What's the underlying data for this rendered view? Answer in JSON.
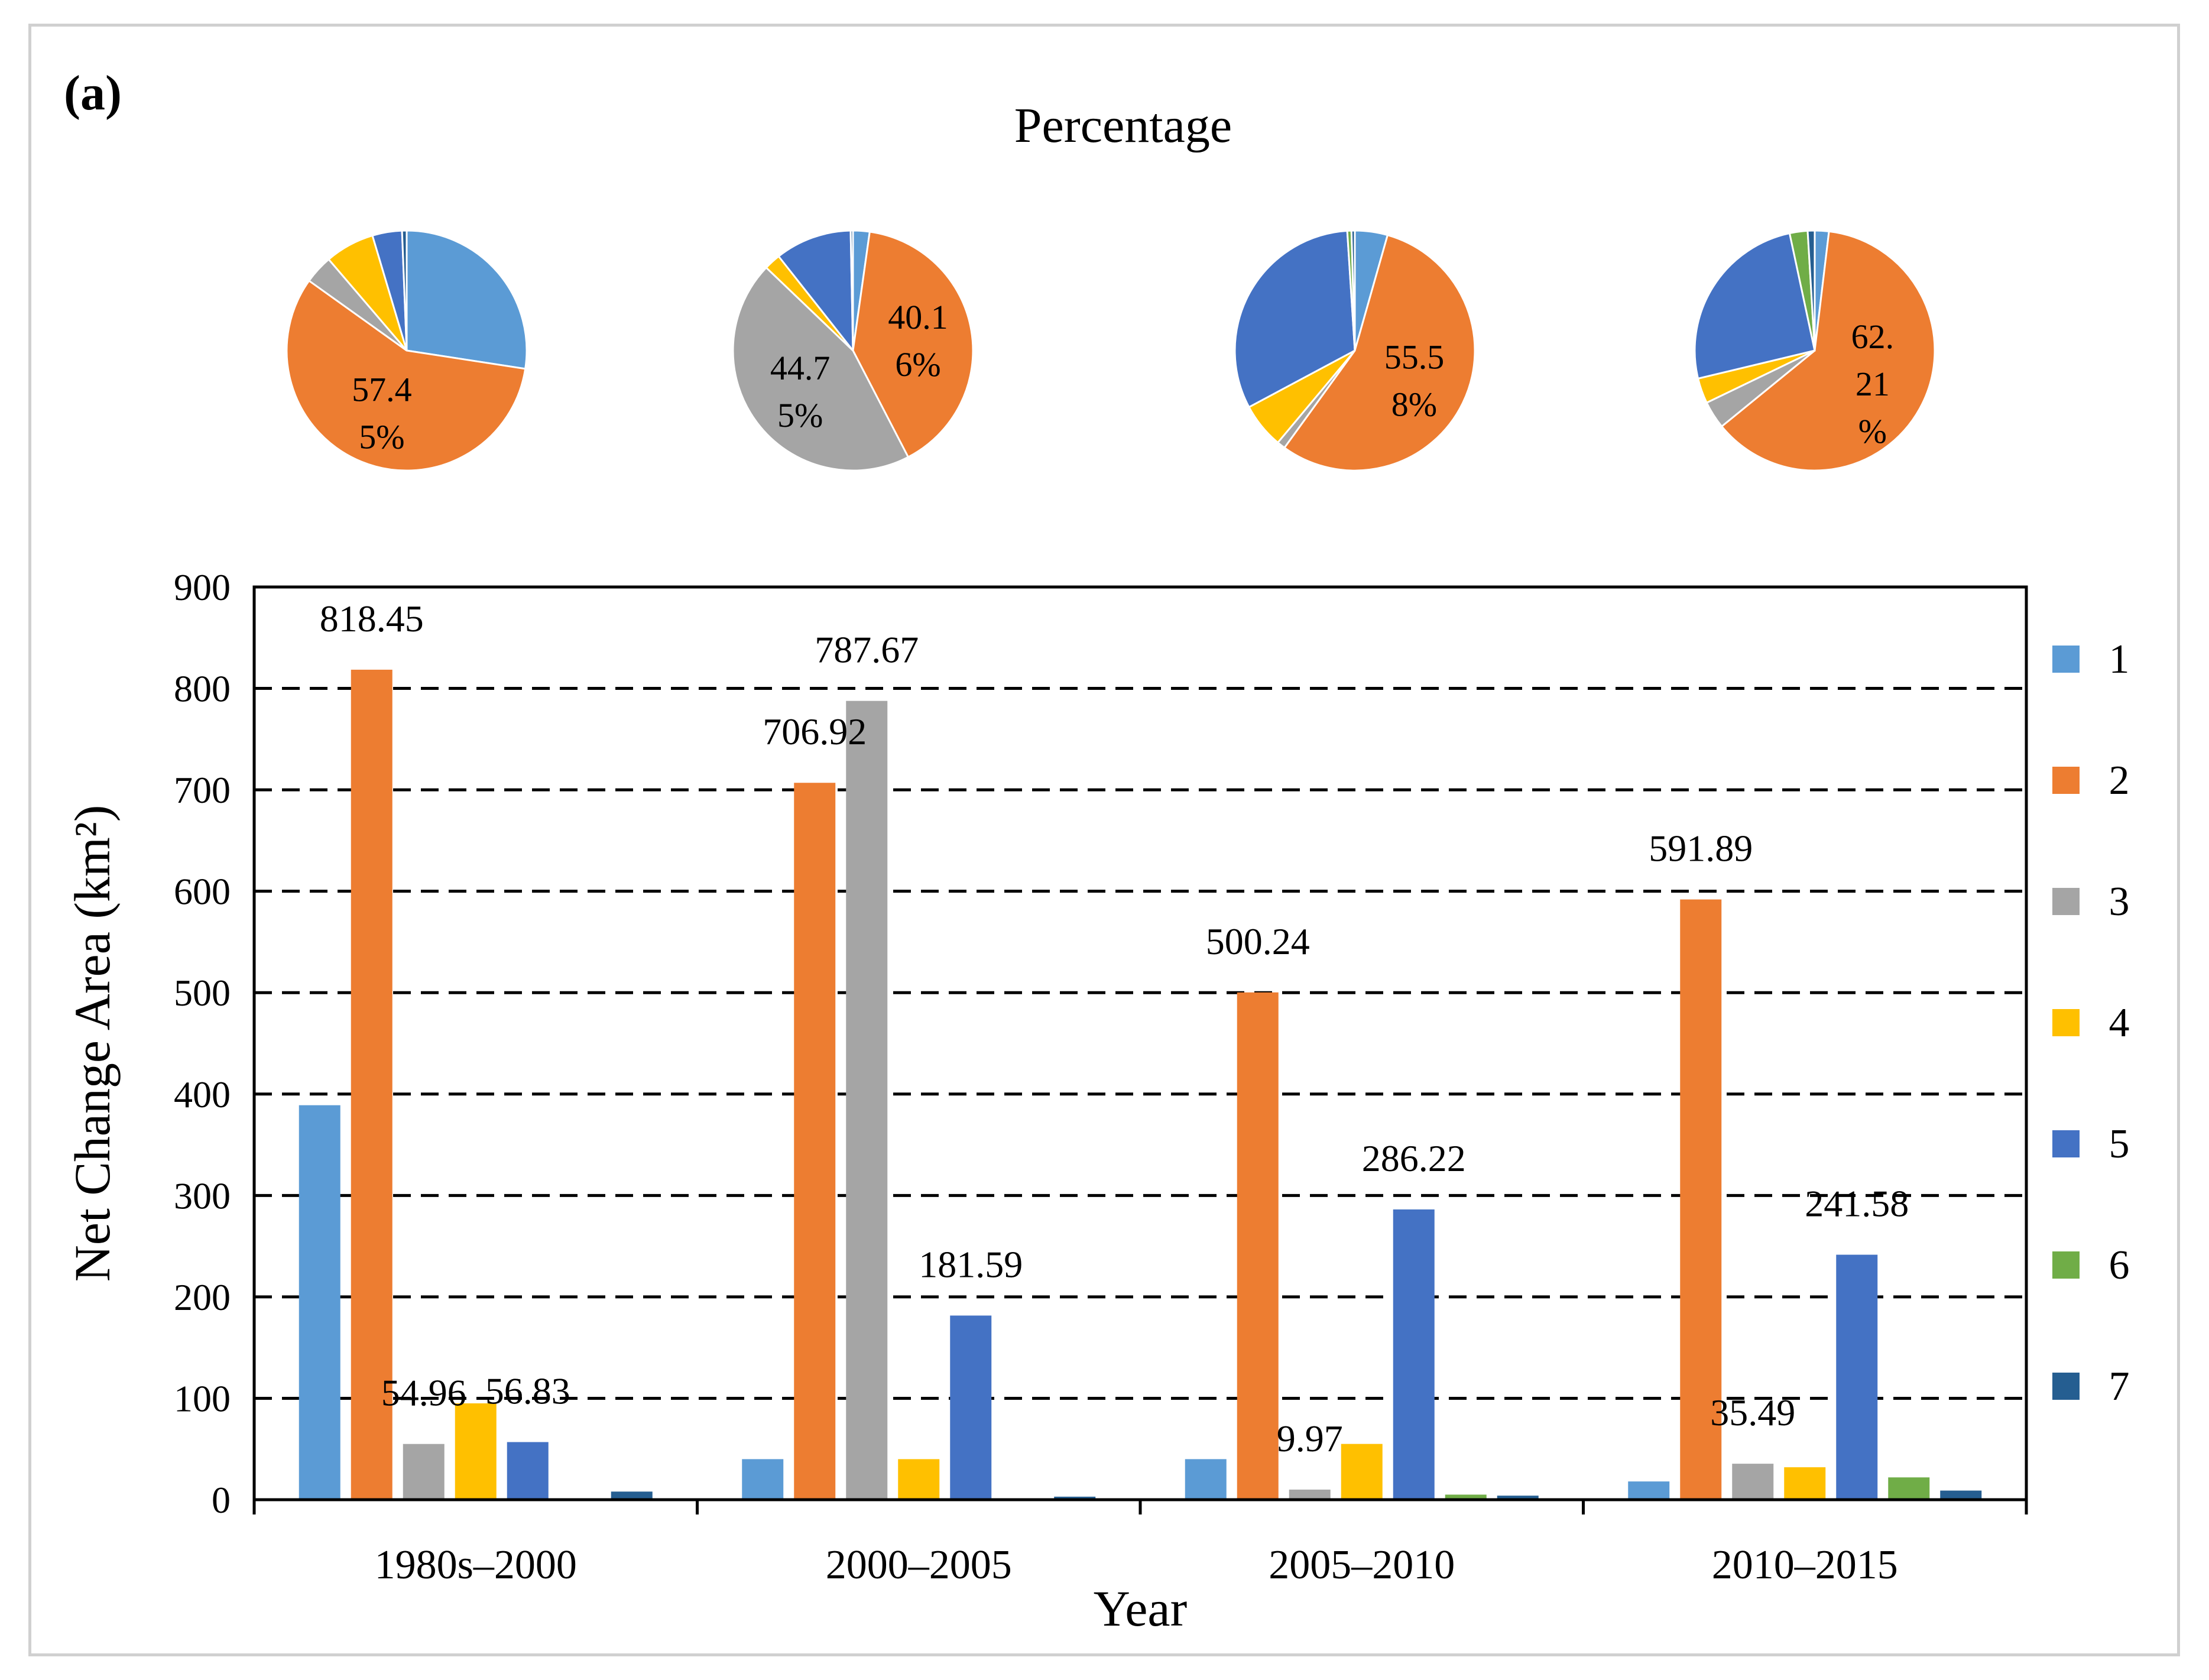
{
  "panel_label": "(a)",
  "chart_data": [
    {
      "type": "pie",
      "title": "Percentage",
      "categories": [
        "1980s–2000",
        "2000–2005",
        "2005–2010",
        "2010–2015"
      ],
      "series_names": [
        "1",
        "2",
        "3",
        "4",
        "5",
        "6",
        "7"
      ],
      "colors": [
        "#5b9bd5",
        "#ed7d31",
        "#a5a5a5",
        "#ffc000",
        "#4472c4",
        "#70ad47",
        "#255e91"
      ],
      "pies": [
        {
          "category": "1980s–2000",
          "values": [
            27.43,
            57.45,
            3.86,
            6.65,
            3.99,
            0.0,
            0.62
          ],
          "label_lines": [
            "57.4",
            "5%"
          ]
        },
        {
          "category": "2000–2005",
          "values": [
            2.23,
            40.16,
            44.75,
            2.23,
            10.32,
            0.0,
            0.31
          ],
          "label_lines_orange": [
            "40.1",
            "6%"
          ],
          "label_lines_gray": [
            "44.7",
            "5%"
          ]
        },
        {
          "category": "2005–2010",
          "values": [
            4.4,
            55.58,
            1.11,
            6.1,
            31.8,
            0.56,
            0.45
          ],
          "label_lines": [
            "55.5",
            "8%"
          ]
        },
        {
          "category": "2010–2015",
          "values": [
            1.9,
            62.21,
            3.73,
            3.41,
            25.39,
            2.42,
            0.94
          ],
          "label_lines": [
            "62.",
            "21",
            "%"
          ]
        }
      ]
    },
    {
      "type": "bar",
      "categories": [
        "1980s–2000",
        "2000–2005",
        "2005–2010",
        "2010–2015"
      ],
      "series": [
        {
          "name": "1",
          "color": "#5b9bd5",
          "values": [
            389,
            40,
            40,
            18
          ]
        },
        {
          "name": "2",
          "color": "#ed7d31",
          "values": [
            818.45,
            706.92,
            500.24,
            591.89
          ]
        },
        {
          "name": "3",
          "color": "#a5a5a5",
          "values": [
            54.96,
            787.67,
            9.97,
            35.49
          ]
        },
        {
          "name": "4",
          "color": "#ffc000",
          "values": [
            95,
            40,
            55,
            32
          ]
        },
        {
          "name": "5",
          "color": "#4472c4",
          "values": [
            56.83,
            181.59,
            286.22,
            241.58
          ]
        },
        {
          "name": "6",
          "color": "#70ad47",
          "values": [
            0,
            0,
            5,
            22
          ]
        },
        {
          "name": "7",
          "color": "#255e91",
          "values": [
            8,
            3,
            4,
            9
          ]
        }
      ],
      "data_labels": [
        {
          "text": "818.45",
          "category": 0,
          "series": 1
        },
        {
          "text": "54.96",
          "category": 0,
          "series": 2
        },
        {
          "text": "56.83",
          "category": 0,
          "series": 4
        },
        {
          "text": "706.92",
          "category": 1,
          "series": 1
        },
        {
          "text": "787.67",
          "category": 1,
          "series": 2
        },
        {
          "text": "181.59",
          "category": 1,
          "series": 4
        },
        {
          "text": "500.24",
          "category": 2,
          "series": 1
        },
        {
          "text": "9.97",
          "category": 2,
          "series": 2
        },
        {
          "text": "286.22",
          "category": 2,
          "series": 4
        },
        {
          "text": "591.89",
          "category": 3,
          "series": 1
        },
        {
          "text": "35.49",
          "category": 3,
          "series": 2
        },
        {
          "text": "241.58",
          "category": 3,
          "series": 4
        }
      ],
      "xlabel": "Year",
      "ylabel": "Net Change Area (km²)",
      "ylim": [
        0,
        900
      ],
      "yticks": [
        "0",
        "100",
        "200",
        "300",
        "400",
        "500",
        "600",
        "700",
        "800",
        "900"
      ],
      "grid": "dashed horizontal",
      "legend": "right"
    }
  ]
}
